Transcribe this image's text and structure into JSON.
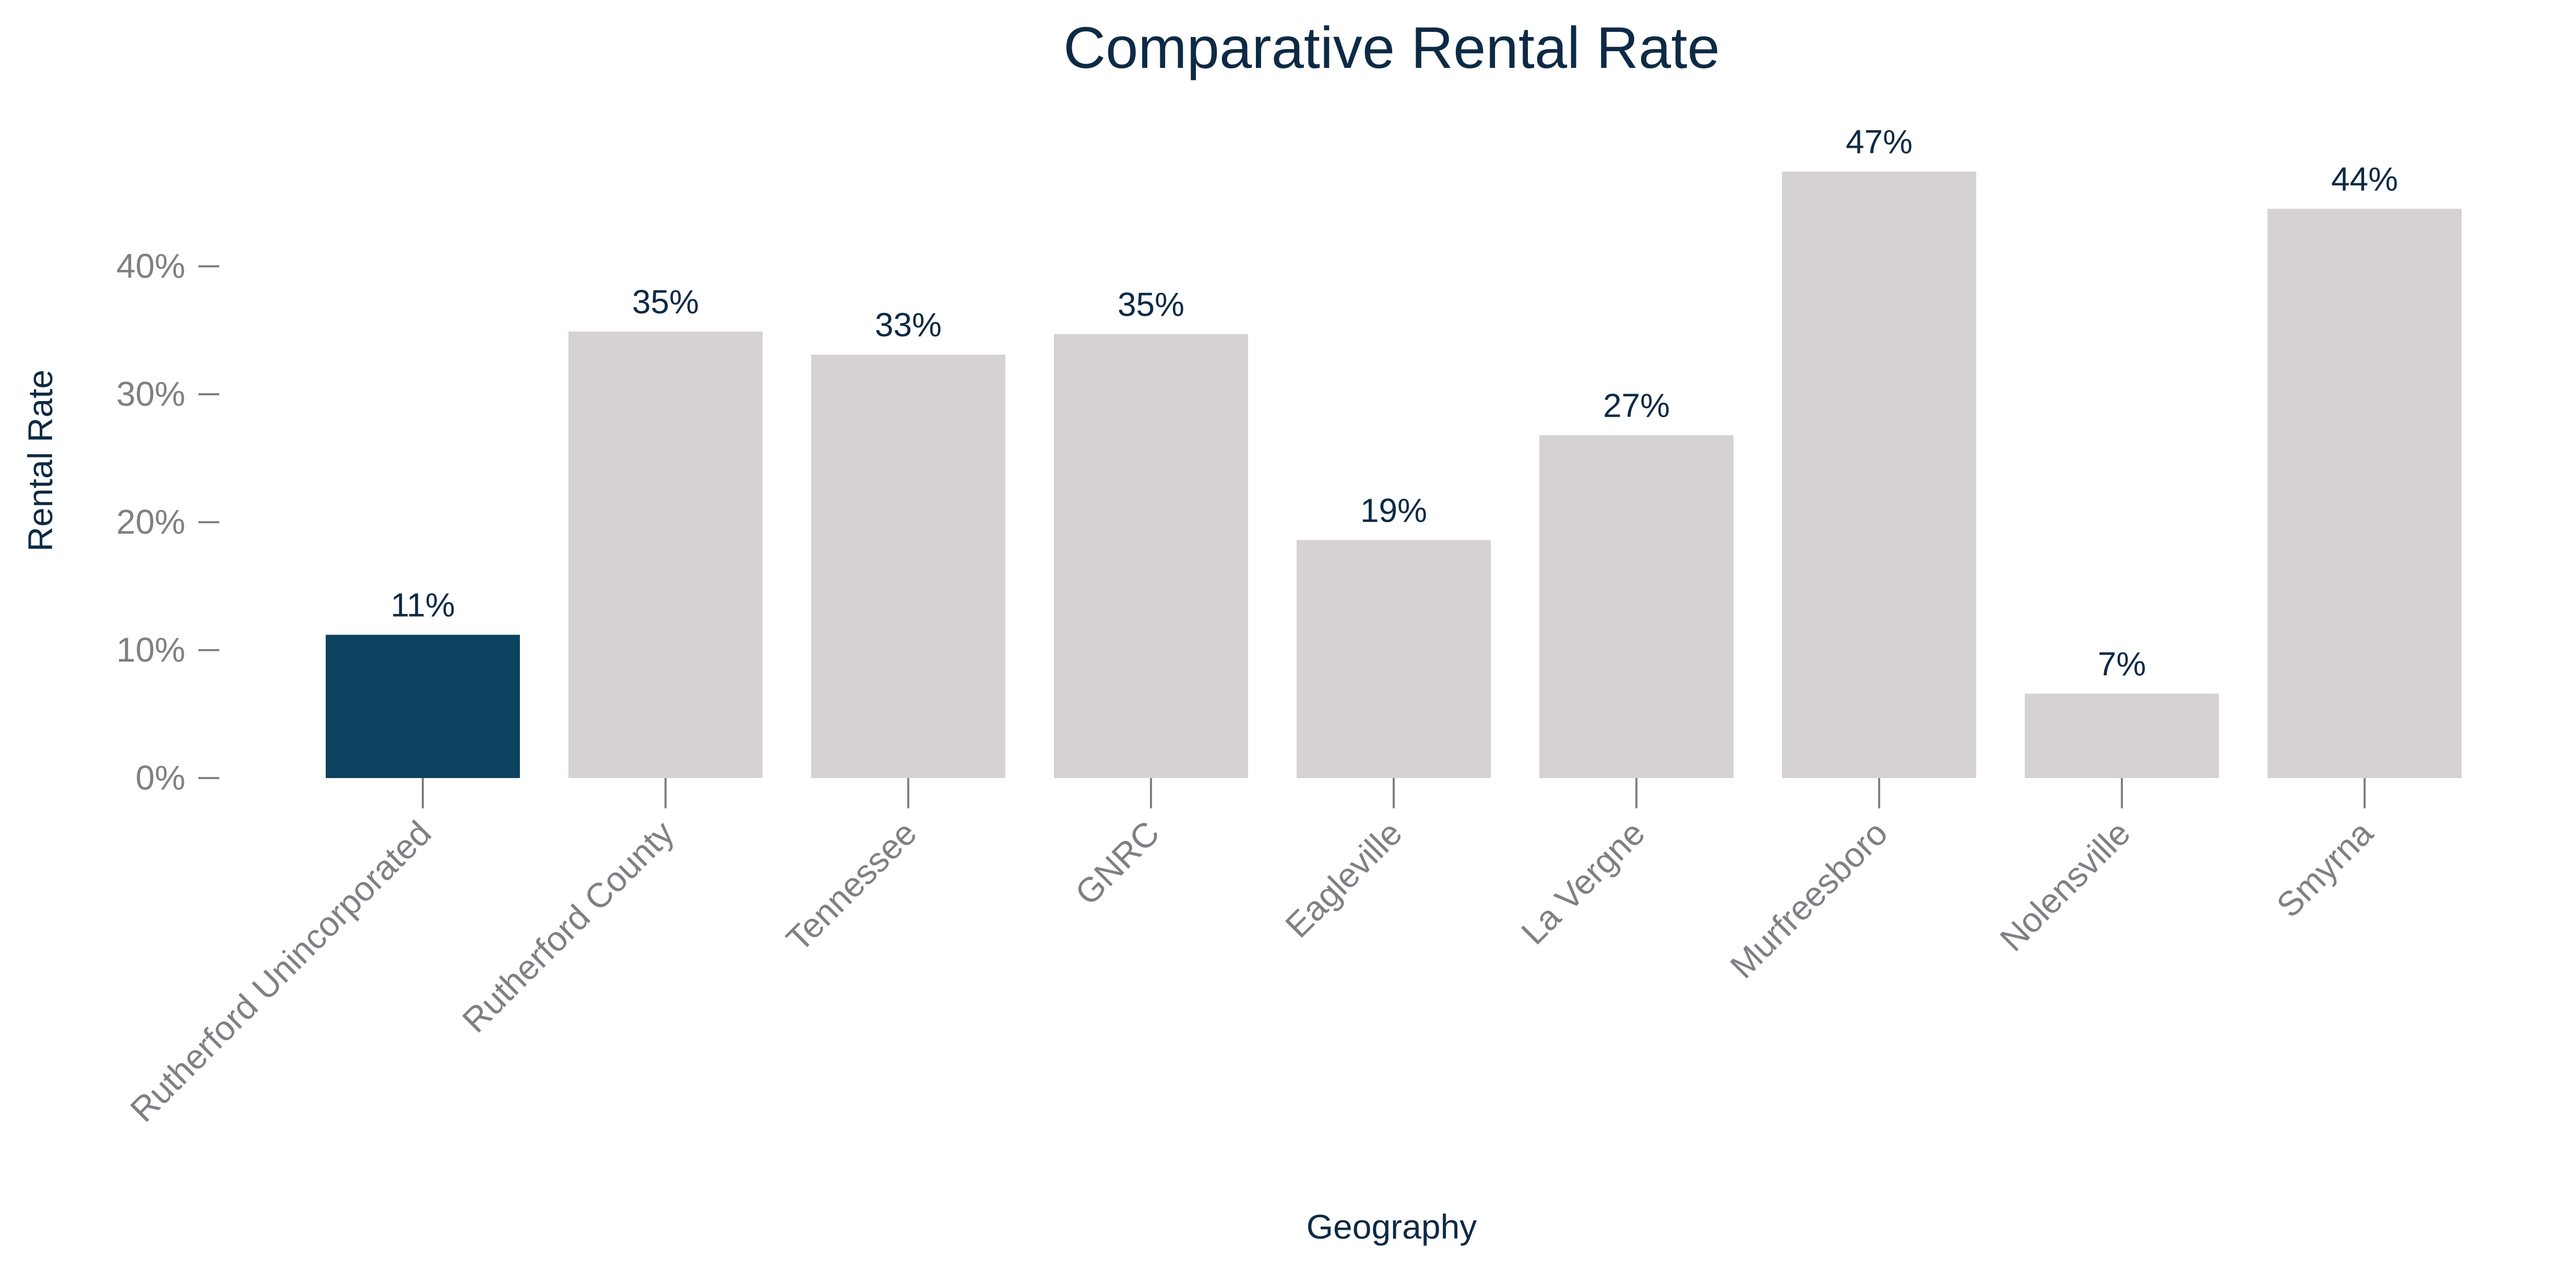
{
  "chart_data": {
    "type": "bar",
    "title": "Comparative Rental Rate",
    "xlabel": "Geography",
    "ylabel": "Rental Rate",
    "categories": [
      "Rutherford Unincorporated",
      "Rutherford County",
      "Tennessee",
      "GNRC",
      "Eagleville",
      "La Vergne",
      "Murfreesboro",
      "Nolensville",
      "Smyrna"
    ],
    "values": [
      0.112,
      0.349,
      0.331,
      0.347,
      0.186,
      0.268,
      0.474,
      0.066,
      0.445
    ],
    "data_labels": [
      "11%",
      "35%",
      "33%",
      "35%",
      "19%",
      "27%",
      "47%",
      "7%",
      "44%"
    ],
    "y_ticks": [
      0,
      0.1,
      0.2,
      0.3,
      0.4
    ],
    "y_tick_labels": [
      "0%",
      "10%",
      "20%",
      "30%",
      "40%"
    ],
    "ylim": [
      0,
      0.5
    ],
    "grid": false,
    "highlight_index": 0,
    "colors": {
      "highlight": "#0b4360",
      "default": "#d6d1d3",
      "title": "#0d2a45",
      "tick": "#7f7f86"
    }
  }
}
